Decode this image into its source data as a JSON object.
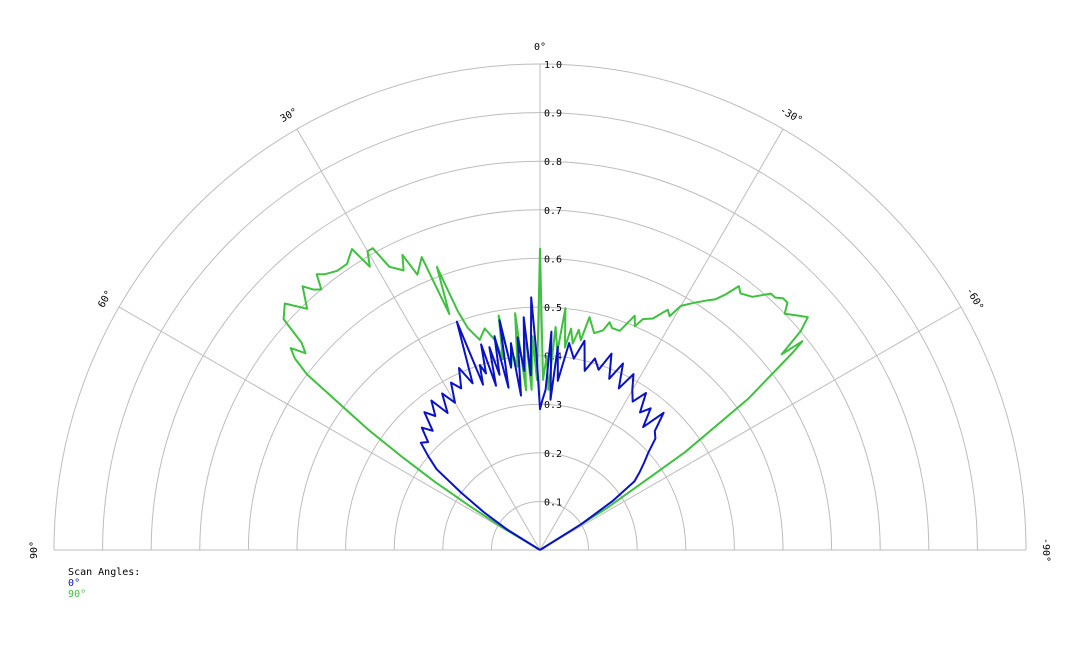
{
  "chart_data": {
    "type": "polar",
    "r_ticks": [
      "0.1",
      "0.2",
      "0.3",
      "0.4",
      "0.5",
      "0.6",
      "0.7",
      "0.8",
      "0.9",
      "1.0"
    ],
    "rmax": 1.0,
    "angle_labels": [
      {
        "deg": 0,
        "text": "0°"
      },
      {
        "deg": 30,
        "text": "30°"
      },
      {
        "deg": -30,
        "text": "-30°"
      },
      {
        "deg": 60,
        "text": "60°"
      },
      {
        "deg": -60,
        "text": "-60°"
      },
      {
        "deg": 90,
        "text": "90°"
      },
      {
        "deg": -90,
        "text": "-90°"
      }
    ],
    "grid": true,
    "legend": {
      "title": "Scan Angles:",
      "placement": "bottom-left"
    },
    "series": [
      {
        "name": "0°",
        "color": "#0a12c8",
        "points": [
          [
            -60,
            0.0
          ],
          [
            -58,
            0.1
          ],
          [
            -56,
            0.18
          ],
          [
            -54,
            0.24
          ],
          [
            -52,
            0.26
          ],
          [
            -50,
            0.28
          ],
          [
            -48,
            0.3
          ],
          [
            -46,
            0.33
          ],
          [
            -44,
            0.34
          ],
          [
            -42,
            0.38
          ],
          [
            -40,
            0.33
          ],
          [
            -38,
            0.37
          ],
          [
            -36,
            0.35
          ],
          [
            -34,
            0.39
          ],
          [
            -32,
            0.36
          ],
          [
            -30,
            0.38
          ],
          [
            -28,
            0.41
          ],
          [
            -26,
            0.37
          ],
          [
            -24,
            0.42
          ],
          [
            -22,
            0.38
          ],
          [
            -20,
            0.43
          ],
          [
            -18,
            0.39
          ],
          [
            -16,
            0.41
          ],
          [
            -14,
            0.38
          ],
          [
            -12,
            0.44
          ],
          [
            -10,
            0.4
          ],
          [
            -8,
            0.43
          ],
          [
            -6,
            0.35
          ],
          [
            -5,
            0.42
          ],
          [
            -4,
            0.31
          ],
          [
            -3,
            0.45
          ],
          [
            -2,
            0.33
          ],
          [
            -1,
            0.31
          ],
          [
            0,
            0.29
          ],
          [
            1,
            0.4
          ],
          [
            2,
            0.52
          ],
          [
            3,
            0.36
          ],
          [
            4,
            0.48
          ],
          [
            5,
            0.37
          ],
          [
            6,
            0.44
          ],
          [
            7,
            0.32
          ],
          [
            8,
            0.43
          ],
          [
            9,
            0.38
          ],
          [
            10,
            0.48
          ],
          [
            11,
            0.34
          ],
          [
            12,
            0.45
          ],
          [
            13,
            0.37
          ],
          [
            14,
            0.43
          ],
          [
            15,
            0.35
          ],
          [
            16,
            0.44
          ],
          [
            17,
            0.38
          ],
          [
            18,
            0.4
          ],
          [
            19,
            0.36
          ],
          [
            20,
            0.5
          ],
          [
            22,
            0.37
          ],
          [
            24,
            0.41
          ],
          [
            26,
            0.37
          ],
          [
            28,
            0.39
          ],
          [
            30,
            0.35
          ],
          [
            32,
            0.38
          ],
          [
            34,
            0.34
          ],
          [
            36,
            0.38
          ],
          [
            38,
            0.35
          ],
          [
            40,
            0.37
          ],
          [
            42,
            0.33
          ],
          [
            44,
            0.35
          ],
          [
            46,
            0.32
          ],
          [
            48,
            0.33
          ],
          [
            50,
            0.3
          ],
          [
            52,
            0.27
          ],
          [
            54,
            0.2
          ],
          [
            56,
            0.14
          ],
          [
            58,
            0.08
          ],
          [
            60,
            0.0
          ]
        ]
      },
      {
        "name": "90°",
        "color": "#3ec13e",
        "points": [
          [
            -60,
            0.0
          ],
          [
            -58,
            0.16
          ],
          [
            -56,
            0.36
          ],
          [
            -54,
            0.53
          ],
          [
            -52,
            0.66
          ],
          [
            -51.5,
            0.69
          ],
          [
            -51,
            0.64
          ],
          [
            -50,
            0.7
          ],
          [
            -49,
            0.73
          ],
          [
            -48,
            0.72
          ],
          [
            -46,
            0.7
          ],
          [
            -45,
            0.72
          ],
          [
            -44,
            0.72
          ],
          [
            -43,
            0.71
          ],
          [
            -42,
            0.71
          ],
          [
            -40,
            0.68
          ],
          [
            -38,
            0.67
          ],
          [
            -37,
            0.68
          ],
          [
            -36,
            0.65
          ],
          [
            -35,
            0.63
          ],
          [
            -34,
            0.62
          ],
          [
            -32,
            0.6
          ],
          [
            -30,
            0.58
          ],
          [
            -29,
            0.55
          ],
          [
            -28,
            0.56
          ],
          [
            -26,
            0.53
          ],
          [
            -24,
            0.52
          ],
          [
            -23,
            0.5
          ],
          [
            -22,
            0.52
          ],
          [
            -20,
            0.48
          ],
          [
            -18,
            0.48
          ],
          [
            -17,
            0.49
          ],
          [
            -16,
            0.47
          ],
          [
            -14,
            0.46
          ],
          [
            -12,
            0.49
          ],
          [
            -11,
            0.44
          ],
          [
            -10,
            0.46
          ],
          [
            -9,
            0.43
          ],
          [
            -8,
            0.46
          ],
          [
            -7,
            0.42
          ],
          [
            -6,
            0.5
          ],
          [
            -5,
            0.41
          ],
          [
            -4,
            0.46
          ],
          [
            -3,
            0.33
          ],
          [
            -2,
            0.4
          ],
          [
            -1,
            0.35
          ],
          [
            0,
            0.62
          ],
          [
            1,
            0.35
          ],
          [
            2,
            0.44
          ],
          [
            3,
            0.33
          ],
          [
            4,
            0.47
          ],
          [
            5,
            0.33
          ],
          [
            6,
            0.49
          ],
          [
            7,
            0.38
          ],
          [
            8,
            0.41
          ],
          [
            9,
            0.38
          ],
          [
            10,
            0.49
          ],
          [
            11,
            0.4
          ],
          [
            12,
            0.44
          ],
          [
            14,
            0.47
          ],
          [
            16,
            0.45
          ],
          [
            18,
            0.48
          ],
          [
            19,
            0.52
          ],
          [
            20,
            0.62
          ],
          [
            21,
            0.52
          ],
          [
            22,
            0.65
          ],
          [
            24,
            0.62
          ],
          [
            25,
            0.67
          ],
          [
            26,
            0.64
          ],
          [
            28,
            0.66
          ],
          [
            29,
            0.71
          ],
          [
            30,
            0.71
          ],
          [
            31,
            0.68
          ],
          [
            32,
            0.73
          ],
          [
            33,
            0.72
          ],
          [
            34,
            0.71
          ],
          [
            36,
            0.71
          ],
          [
            38,
            0.72
          ],
          [
            39,
            0.73
          ],
          [
            40,
            0.7
          ],
          [
            41,
            0.71
          ],
          [
            42,
            0.73
          ],
          [
            44,
            0.69
          ],
          [
            46,
            0.73
          ],
          [
            48,
            0.71
          ],
          [
            49,
            0.65
          ],
          [
            50,
            0.63
          ],
          [
            51,
            0.66
          ],
          [
            52,
            0.64
          ],
          [
            53,
            0.6
          ],
          [
            54,
            0.5
          ],
          [
            55,
            0.43
          ],
          [
            56,
            0.34
          ],
          [
            57,
            0.26
          ],
          [
            58,
            0.17
          ],
          [
            59,
            0.09
          ],
          [
            60,
            0.0
          ]
        ]
      }
    ]
  }
}
